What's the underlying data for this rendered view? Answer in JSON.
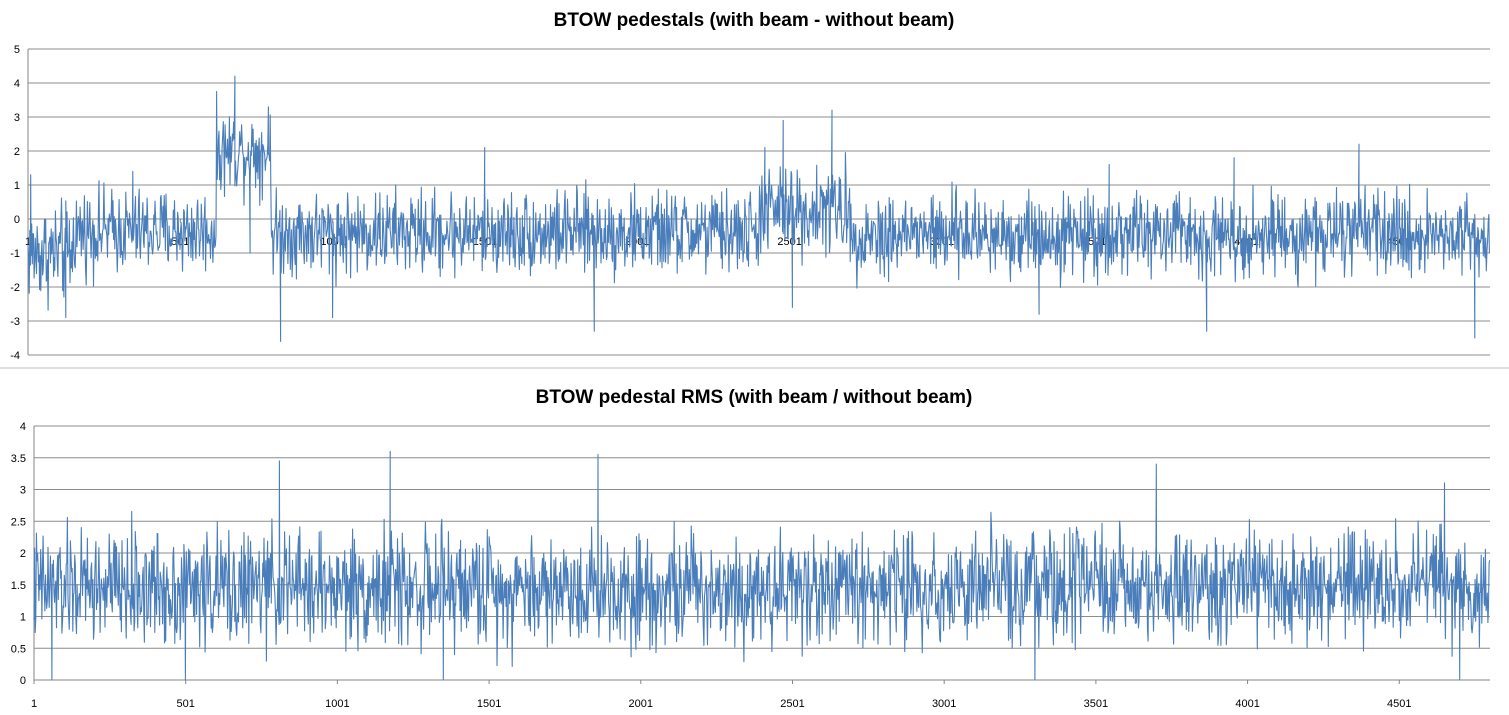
{
  "chart_data": [
    {
      "type": "line",
      "title": "BTOW pedestals (with beam - without beam)",
      "xlabel": "",
      "ylabel": "",
      "ylim": [
        -4,
        5
      ],
      "yticks": [
        5,
        4,
        3,
        2,
        1,
        0,
        -1,
        -2,
        -3,
        -4
      ],
      "xlim": [
        1,
        4800
      ],
      "xticks": [
        "1",
        "501",
        "1001",
        "1501",
        "2001",
        "2501",
        "3001",
        "3501",
        "4001",
        "4501"
      ],
      "x_axis_crosses_at": 0,
      "grid": "horizontal",
      "legend": "none",
      "color": "#4a7ebb",
      "series": [
        {
          "segments": [
            {
              "x": [
                1,
                150
              ],
              "mean": -1.0,
              "spread": 0.9
            },
            {
              "x": [
                150,
                620
              ],
              "mean": -0.35,
              "spread": 0.75
            },
            {
              "x": [
                620,
                800
              ],
              "mean": 2.0,
              "spread": 0.75
            },
            {
              "x": [
                800,
                2400
              ],
              "mean": -0.4,
              "spread": 0.75
            },
            {
              "x": [
                2400,
                2700
              ],
              "mean": 0.25,
              "spread": 0.8
            },
            {
              "x": [
                2700,
                4800
              ],
              "mean": -0.45,
              "spread": 0.75
            }
          ],
          "points": [
            {
              "x": 10,
              "y": 1.3
            },
            {
              "x": 125,
              "y": -2.9
            },
            {
              "x": 345,
              "y": 1.4
            },
            {
              "x": 620,
              "y": 3.6
            },
            {
              "x": 680,
              "y": 4.2
            },
            {
              "x": 730,
              "y": -1.0
            },
            {
              "x": 790,
              "y": 3.3
            },
            {
              "x": 830,
              "y": -3.6
            },
            {
              "x": 1001,
              "y": -2.9
            },
            {
              "x": 1500,
              "y": 2.1
            },
            {
              "x": 1860,
              "y": -3.3
            },
            {
              "x": 2420,
              "y": 2.1
            },
            {
              "x": 2480,
              "y": 2.9
            },
            {
              "x": 2510,
              "y": -2.6
            },
            {
              "x": 2640,
              "y": 3.2
            },
            {
              "x": 3320,
              "y": -2.8
            },
            {
              "x": 3550,
              "y": 1.6
            },
            {
              "x": 3870,
              "y": -3.3
            },
            {
              "x": 3960,
              "y": 1.8
            },
            {
              "x": 4370,
              "y": 2.2
            },
            {
              "x": 4750,
              "y": -3.5
            }
          ]
        }
      ]
    },
    {
      "type": "line",
      "title": "BTOW pedestal RMS (with beam / without beam)",
      "xlabel": "",
      "ylabel": "",
      "ylim": [
        0,
        4
      ],
      "yticks": [
        "4",
        "3.5",
        "3",
        "2.5",
        "2",
        "1.5",
        "1",
        "0.5",
        "0"
      ],
      "xlim": [
        1,
        4800
      ],
      "xticks": [
        "1",
        "501",
        "1001",
        "1501",
        "2001",
        "2501",
        "3001",
        "3501",
        "4001",
        "4501"
      ],
      "grid": "horizontal",
      "legend": "none",
      "color": "#4a7ebb",
      "series": [
        {
          "segments": [
            {
              "x": [
                1,
                4800
              ],
              "mean": 1.45,
              "spread": 0.55
            }
          ],
          "points": [
            {
              "x": 810,
              "y": 3.45
            },
            {
              "x": 1175,
              "y": 3.6
            },
            {
              "x": 1860,
              "y": 3.55
            },
            {
              "x": 3700,
              "y": 3.4
            },
            {
              "x": 4650,
              "y": 3.1
            },
            {
              "x": 60,
              "y": 0
            },
            {
              "x": 500,
              "y": 0
            },
            {
              "x": 1350,
              "y": 0
            },
            {
              "x": 3300,
              "y": 0
            },
            {
              "x": 4700,
              "y": 0
            }
          ]
        }
      ]
    }
  ]
}
